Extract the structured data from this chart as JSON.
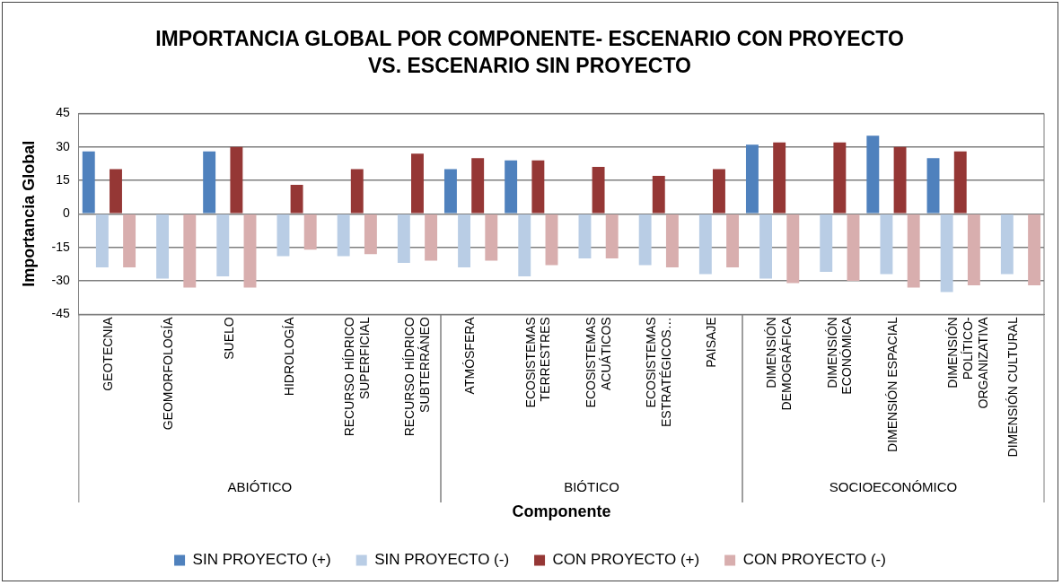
{
  "chart_data": {
    "type": "bar",
    "title": "IMPORTANCIA GLOBAL POR COMPONENTE- ESCENARIO CON PROYECTO VS. ESCENARIO SIN PROYECTO",
    "xlabel": "Componente",
    "ylabel": "Importancia Global",
    "categories": [
      "GEOTECNIA",
      "GEOMORFOLOGÍA",
      "SUELO",
      "HIDROLOGÍA",
      "RECURSO HÍDRICO SUPERFICIAL",
      "RECURSO HÍDRICO SUBTERRÁNEO",
      "ATMÓSFERA",
      "ECOSISTEMAS TERRESTRES",
      "ECOSISTEMAS ACUÁTICOS",
      "ECOSISTEMAS ESTRATÉGICOS…",
      "PAISAJE",
      "DIMENSIÓN DEMOGRÁFICA",
      "DIMENSIÓN ECONÓMICA",
      "DIMENSIÓN ESPACIAL",
      "DIMENSIÓN POLÍTICO-ORGANIZATIVA",
      "DIMENSIÓN CULTURAL"
    ],
    "series": [
      {
        "name": "SIN PROYECTO (+)",
        "color": "#4f81bd",
        "values": [
          28,
          null,
          28,
          null,
          null,
          null,
          20,
          24,
          null,
          null,
          null,
          31,
          null,
          35,
          25,
          null
        ]
      },
      {
        "name": "SIN PROYECTO (-)",
        "color": "#b9cde5",
        "values": [
          -24,
          -29,
          -28,
          -19,
          -19,
          -22,
          -24,
          -28,
          -20,
          -23,
          -27,
          -29,
          -26,
          -27,
          -35,
          -27
        ]
      },
      {
        "name": "CON PROYECTO (+)",
        "color": "#953735",
        "values": [
          20,
          null,
          30,
          13,
          20,
          27,
          25,
          24,
          21,
          17,
          20,
          32,
          32,
          30,
          28,
          null
        ]
      },
      {
        "name": "CON PROYECTO (-)",
        "color": "#d8aeae",
        "values": [
          -24,
          -33,
          -33,
          -16,
          -18,
          -21,
          -21,
          -23,
          -20,
          -24,
          -24,
          -31,
          -30,
          -33,
          -32,
          -32
        ]
      }
    ],
    "annotations": [
      "ABIÓTICO",
      "BIÓTICO",
      "SOCIOECONÓMICO"
    ],
    "ylim": [
      -45,
      45
    ],
    "yticks": [
      -45,
      -30,
      -15,
      0,
      15,
      30,
      45
    ],
    "grid": "y",
    "legend": "bottom"
  }
}
